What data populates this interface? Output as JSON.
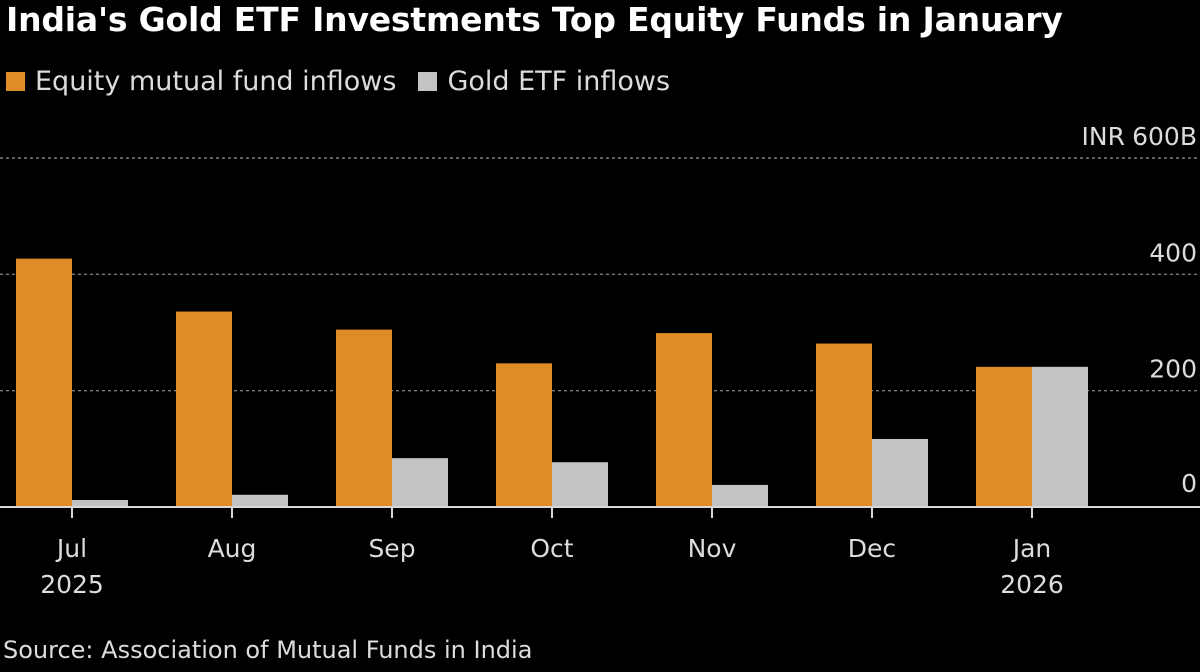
{
  "title": "India's Gold ETF Investments Top Equity Funds in January",
  "source": "Source: Association of Mutual Funds in India",
  "colors": {
    "equity": "#e08c26",
    "gold": "#c3c3c3",
    "background": "#000000"
  },
  "chart_data": {
    "type": "bar",
    "title": "India's Gold ETF Investments Top Equity Funds in January",
    "xlabel": "",
    "ylabel": "",
    "y_unit_label": "INR",
    "categories": [
      "Jul",
      "Aug",
      "Sep",
      "Oct",
      "Nov",
      "Dec",
      "Jan"
    ],
    "category_years": [
      "2025",
      "",
      "",
      "",
      "",
      "",
      "2026"
    ],
    "series": [
      {
        "name": "Equity mutual fund inflows",
        "color": "#e08c26",
        "values": [
          427,
          336,
          305,
          247,
          299,
          281,
          241
        ]
      },
      {
        "name": "Gold ETF inflows",
        "color": "#c3c3c3",
        "values": [
          12,
          21,
          84,
          77,
          38,
          117,
          241
        ]
      }
    ],
    "ylim": [
      0,
      600
    ],
    "yticks": [
      0,
      200,
      400,
      600
    ],
    "ytick_labels": [
      "0",
      "200",
      "400",
      "600B"
    ],
    "grid": true,
    "legend": "top-left"
  }
}
